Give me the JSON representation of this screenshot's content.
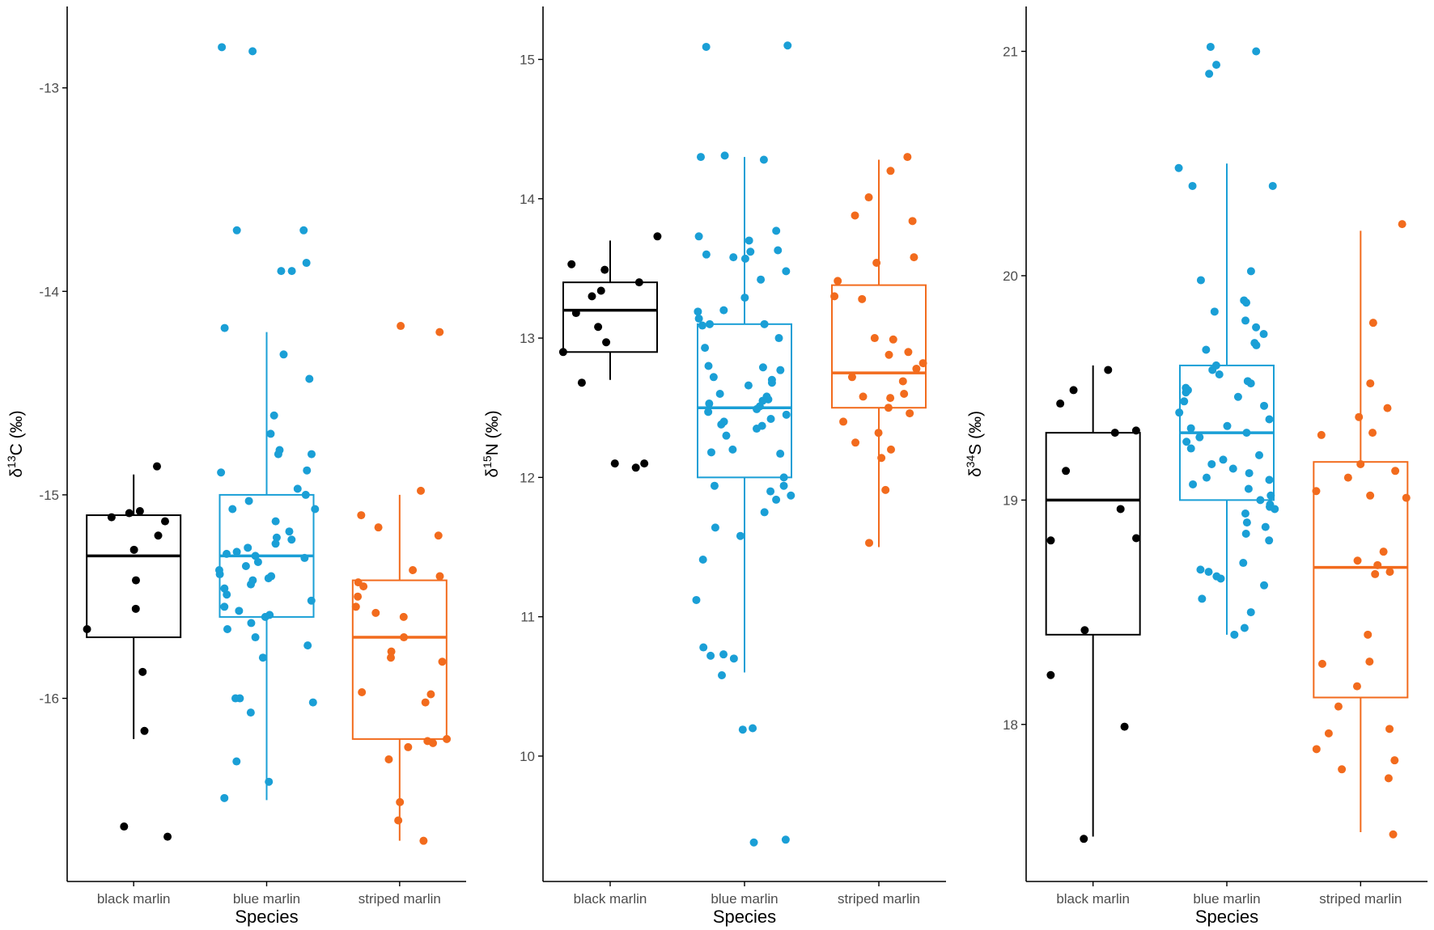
{
  "figure": {
    "xlabel": "Species"
  },
  "colors": {
    "black marlin": "#000000",
    "blue marlin": "#1a9fd6",
    "striped marlin": "#f26b1d",
    "axis": "#000000",
    "tick_text": "#4d4d4d"
  },
  "chart_data": [
    {
      "type": "boxplot",
      "panel": "carbon",
      "ylabel": {
        "prefix": "δ",
        "sup": "13",
        "suffix": "C (‰)"
      },
      "xlabel": "Species",
      "categories": [
        "black marlin",
        "blue marlin",
        "striped marlin"
      ],
      "ylim": [
        -16.9,
        -12.6
      ],
      "yticks": [
        -13,
        -14,
        -15,
        -16
      ],
      "boxes": [
        {
          "species": "black marlin",
          "q1": -15.7,
          "median": -15.3,
          "q3": -15.1,
          "whisker_low": -16.2,
          "whisker_high": -14.9
        },
        {
          "species": "blue marlin",
          "q1": -15.6,
          "median": -15.3,
          "q3": -15.0,
          "whisker_low": -16.5,
          "whisker_high": -14.2
        },
        {
          "species": "striped marlin",
          "q1": -16.2,
          "median": -15.7,
          "q3": -15.42,
          "whisker_low": -16.7,
          "whisker_high": -15.0
        }
      ],
      "points": [
        {
          "species": "black marlin",
          "values": [
            -14.86,
            -15.08,
            -15.09,
            -15.11,
            -15.13,
            -15.2,
            -15.27,
            -15.42,
            -15.56,
            -15.66,
            -15.87,
            -16.16,
            -16.63,
            -16.68
          ]
        },
        {
          "species": "blue marlin",
          "values": [
            -12.8,
            -12.82,
            -13.7,
            -13.7,
            -13.86,
            -13.9,
            -13.9,
            -14.18,
            -14.31,
            -14.43,
            -14.61,
            -14.7,
            -14.78,
            -14.8,
            -14.8,
            -14.88,
            -14.89,
            -14.97,
            -15.0,
            -15.03,
            -15.07,
            -15.07,
            -15.13,
            -15.18,
            -15.21,
            -15.22,
            -15.24,
            -15.26,
            -15.28,
            -15.29,
            -15.3,
            -15.31,
            -15.33,
            -15.35,
            -15.37,
            -15.39,
            -15.4,
            -15.41,
            -15.42,
            -15.44,
            -15.46,
            -15.49,
            -15.52,
            -15.55,
            -15.57,
            -15.59,
            -15.6,
            -15.63,
            -15.66,
            -15.7,
            -15.74,
            -15.8,
            -16.0,
            -16.0,
            -16.02,
            -16.07,
            -16.31,
            -16.41,
            -16.49
          ]
        },
        {
          "species": "striped marlin",
          "values": [
            -14.17,
            -14.2,
            -14.98,
            -15.1,
            -15.16,
            -15.2,
            -15.37,
            -15.4,
            -15.43,
            -15.45,
            -15.5,
            -15.55,
            -15.58,
            -15.6,
            -15.7,
            -15.77,
            -15.8,
            -15.82,
            -15.97,
            -15.98,
            -16.02,
            -16.2,
            -16.21,
            -16.22,
            -16.24,
            -16.3,
            -16.51,
            -16.6,
            -16.7
          ]
        }
      ]
    },
    {
      "type": "boxplot",
      "panel": "nitrogen",
      "ylabel": {
        "prefix": "δ",
        "sup": "15",
        "suffix": "N (‰)"
      },
      "xlabel": "Species",
      "categories": [
        "black marlin",
        "blue marlin",
        "striped marlin"
      ],
      "ylim": [
        9.1,
        15.38
      ],
      "yticks": [
        10,
        11,
        12,
        13,
        14,
        15
      ],
      "boxes": [
        {
          "species": "black marlin",
          "q1": 12.9,
          "median": 13.2,
          "q3": 13.4,
          "whisker_low": 12.7,
          "whisker_high": 13.7
        },
        {
          "species": "blue marlin",
          "q1": 12.0,
          "median": 12.5,
          "q3": 13.1,
          "whisker_low": 10.6,
          "whisker_high": 14.3
        },
        {
          "species": "striped marlin",
          "q1": 12.5,
          "median": 12.75,
          "q3": 13.38,
          "whisker_low": 11.5,
          "whisker_high": 14.28
        }
      ],
      "points": [
        {
          "species": "black marlin",
          "values": [
            13.73,
            13.53,
            13.49,
            13.4,
            13.34,
            13.3,
            13.18,
            13.08,
            12.97,
            12.9,
            12.68,
            12.1,
            12.1,
            12.07
          ]
        },
        {
          "species": "blue marlin",
          "values": [
            15.09,
            15.1,
            14.31,
            14.3,
            14.28,
            13.77,
            13.73,
            13.7,
            13.63,
            13.62,
            13.6,
            13.58,
            13.57,
            13.48,
            13.42,
            13.29,
            13.2,
            13.19,
            13.14,
            13.1,
            13.1,
            13.09,
            13.0,
            12.93,
            12.8,
            12.79,
            12.77,
            12.72,
            12.7,
            12.68,
            12.66,
            12.6,
            12.58,
            12.56,
            12.55,
            12.53,
            12.51,
            12.49,
            12.47,
            12.45,
            12.42,
            12.4,
            12.38,
            12.37,
            12.35,
            12.3,
            12.2,
            12.18,
            12.17,
            12.0,
            11.94,
            11.94,
            11.9,
            11.87,
            11.84,
            11.75,
            11.64,
            11.58,
            11.41,
            11.12,
            10.78,
            10.73,
            10.72,
            10.7,
            10.58,
            10.2,
            10.19,
            9.4,
            9.38
          ]
        },
        {
          "species": "striped marlin",
          "values": [
            14.3,
            14.2,
            14.01,
            13.88,
            13.84,
            13.58,
            13.54,
            13.41,
            13.3,
            13.28,
            13.0,
            12.99,
            12.9,
            12.88,
            12.82,
            12.78,
            12.72,
            12.69,
            12.6,
            12.58,
            12.57,
            12.5,
            12.46,
            12.4,
            12.32,
            12.25,
            12.2,
            12.14,
            11.91,
            11.53
          ]
        }
      ]
    },
    {
      "type": "boxplot",
      "panel": "sulfur",
      "ylabel": {
        "prefix": "δ",
        "sup": "34",
        "suffix": "S (‰)"
      },
      "xlabel": "Species",
      "categories": [
        "black marlin",
        "blue marlin",
        "striped marlin"
      ],
      "ylim": [
        17.3,
        21.2
      ],
      "yticks": [
        18,
        19,
        20,
        21
      ],
      "boxes": [
        {
          "species": "black marlin",
          "q1": 18.4,
          "median": 19.0,
          "q3": 19.3,
          "whisker_low": 17.5,
          "whisker_high": 19.6
        },
        {
          "species": "blue marlin",
          "q1": 19.0,
          "median": 19.3,
          "q3": 19.6,
          "whisker_low": 18.4,
          "whisker_high": 20.5
        },
        {
          "species": "striped marlin",
          "q1": 18.12,
          "median": 18.7,
          "q3": 19.17,
          "whisker_low": 17.52,
          "whisker_high": 20.2
        }
      ],
      "points": [
        {
          "species": "black marlin",
          "values": [
            19.58,
            19.49,
            19.43,
            19.31,
            19.3,
            19.13,
            18.96,
            18.83,
            18.82,
            18.42,
            18.22,
            17.99,
            17.49
          ]
        },
        {
          "species": "blue marlin",
          "values": [
            21.02,
            21.0,
            20.94,
            20.9,
            20.48,
            20.4,
            20.4,
            20.02,
            19.98,
            19.89,
            19.88,
            19.84,
            19.8,
            19.77,
            19.74,
            19.7,
            19.69,
            19.67,
            19.6,
            19.58,
            19.56,
            19.53,
            19.52,
            19.5,
            19.49,
            19.48,
            19.46,
            19.44,
            19.42,
            19.39,
            19.36,
            19.33,
            19.32,
            19.3,
            19.28,
            19.26,
            19.23,
            19.2,
            19.18,
            19.16,
            19.14,
            19.12,
            19.1,
            19.09,
            19.07,
            19.05,
            19.02,
            19.0,
            18.98,
            18.97,
            18.96,
            18.94,
            18.9,
            18.88,
            18.85,
            18.82,
            18.72,
            18.69,
            18.68,
            18.66,
            18.65,
            18.62,
            18.56,
            18.5,
            18.43,
            18.4
          ]
        },
        {
          "species": "striped marlin",
          "values": [
            20.23,
            19.79,
            19.52,
            19.41,
            19.37,
            19.3,
            19.29,
            19.16,
            19.13,
            19.1,
            19.04,
            19.02,
            19.01,
            18.77,
            18.73,
            18.71,
            18.68,
            18.67,
            18.4,
            18.28,
            18.27,
            18.17,
            18.08,
            17.98,
            17.96,
            17.89,
            17.84,
            17.8,
            17.76,
            17.51
          ]
        }
      ]
    }
  ]
}
